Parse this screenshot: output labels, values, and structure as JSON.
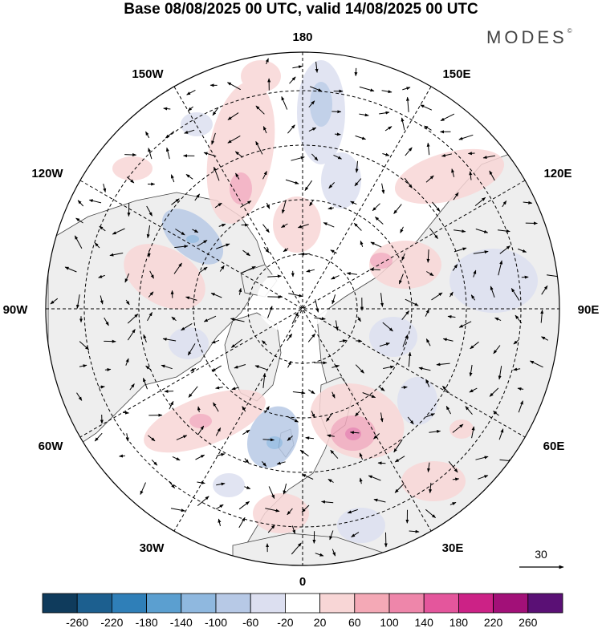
{
  "title": "Base 08/08/2025 00 UTC, valid 14/08/2025 00 UTC",
  "brand": "MODES",
  "brand_mark": "©",
  "longitude_labels": {
    "lon_180": "180",
    "lon_150e": "150E",
    "lon_120e": "120E",
    "lon_90e": "90E",
    "lon_60e": "60E",
    "lon_30e": "30E",
    "lon_0": "0",
    "lon_30w": "30W",
    "lon_60w": "60W",
    "lon_90w": "90W",
    "lon_120w": "120W",
    "lon_150w": "150W"
  },
  "vector_reference": {
    "label": "30"
  },
  "colorbar": {
    "colors": [
      "#0f3b5c",
      "#1c5f8f",
      "#2f7fb8",
      "#5b9fd0",
      "#8fb8df",
      "#b7c9e6",
      "#dcdff0",
      "#ffffff",
      "#f8d6d6",
      "#f4a9b6",
      "#ee86aa",
      "#e4569c",
      "#cc2286",
      "#a21078",
      "#5a1075"
    ],
    "labels": [
      "-260",
      "-220",
      "-180",
      "-140",
      "-100",
      "-60",
      "-20",
      "20",
      "60",
      "100",
      "140",
      "180",
      "220",
      "260"
    ]
  },
  "colors": {
    "ocean": "#ffffff",
    "land": "#eeeeee",
    "positive": "#f8d6d6",
    "positive_strong": "#f1a9bd",
    "positive_peak": "#e77fae",
    "negative": "#dcdff0",
    "negative_strong": "#b7c9e6",
    "negative_peak": "#8fb8df"
  }
}
